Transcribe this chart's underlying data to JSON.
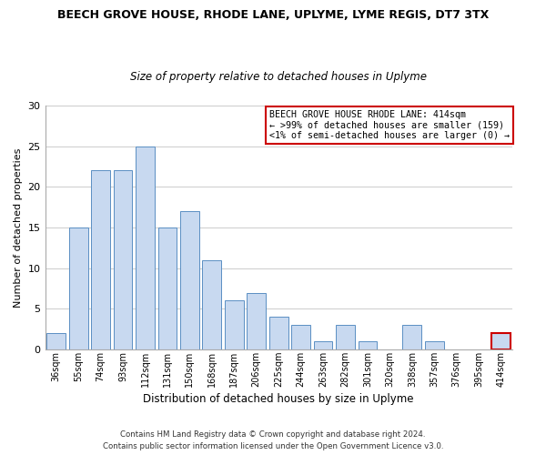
{
  "title": "BEECH GROVE HOUSE, RHODE LANE, UPLYME, LYME REGIS, DT7 3TX",
  "subtitle": "Size of property relative to detached houses in Uplyme",
  "xlabel": "Distribution of detached houses by size in Uplyme",
  "ylabel": "Number of detached properties",
  "categories": [
    "36sqm",
    "55sqm",
    "74sqm",
    "93sqm",
    "112sqm",
    "131sqm",
    "150sqm",
    "168sqm",
    "187sqm",
    "206sqm",
    "225sqm",
    "244sqm",
    "263sqm",
    "282sqm",
    "301sqm",
    "320sqm",
    "338sqm",
    "357sqm",
    "376sqm",
    "395sqm",
    "414sqm"
  ],
  "values": [
    2,
    15,
    22,
    22,
    25,
    15,
    17,
    11,
    6,
    7,
    4,
    3,
    1,
    3,
    1,
    0,
    3,
    1,
    0,
    0,
    2
  ],
  "bar_color": "#c8d9f0",
  "bar_edge_color": "#5a8fc3",
  "highlight_last_bar_edge_color": "#cc0000",
  "ylim": [
    0,
    30
  ],
  "yticks": [
    0,
    5,
    10,
    15,
    20,
    25,
    30
  ],
  "annotation_title": "BEECH GROVE HOUSE RHODE LANE: 414sqm",
  "annotation_line1": "← >99% of detached houses are smaller (159)",
  "annotation_line2": "<1% of semi-detached houses are larger (0) →",
  "annotation_box_color": "#ffffff",
  "annotation_box_edge_color": "#cc0000",
  "footer_line1": "Contains HM Land Registry data © Crown copyright and database right 2024.",
  "footer_line2": "Contains public sector information licensed under the Open Government Licence v3.0.",
  "background_color": "#ffffff",
  "grid_color": "#cccccc"
}
